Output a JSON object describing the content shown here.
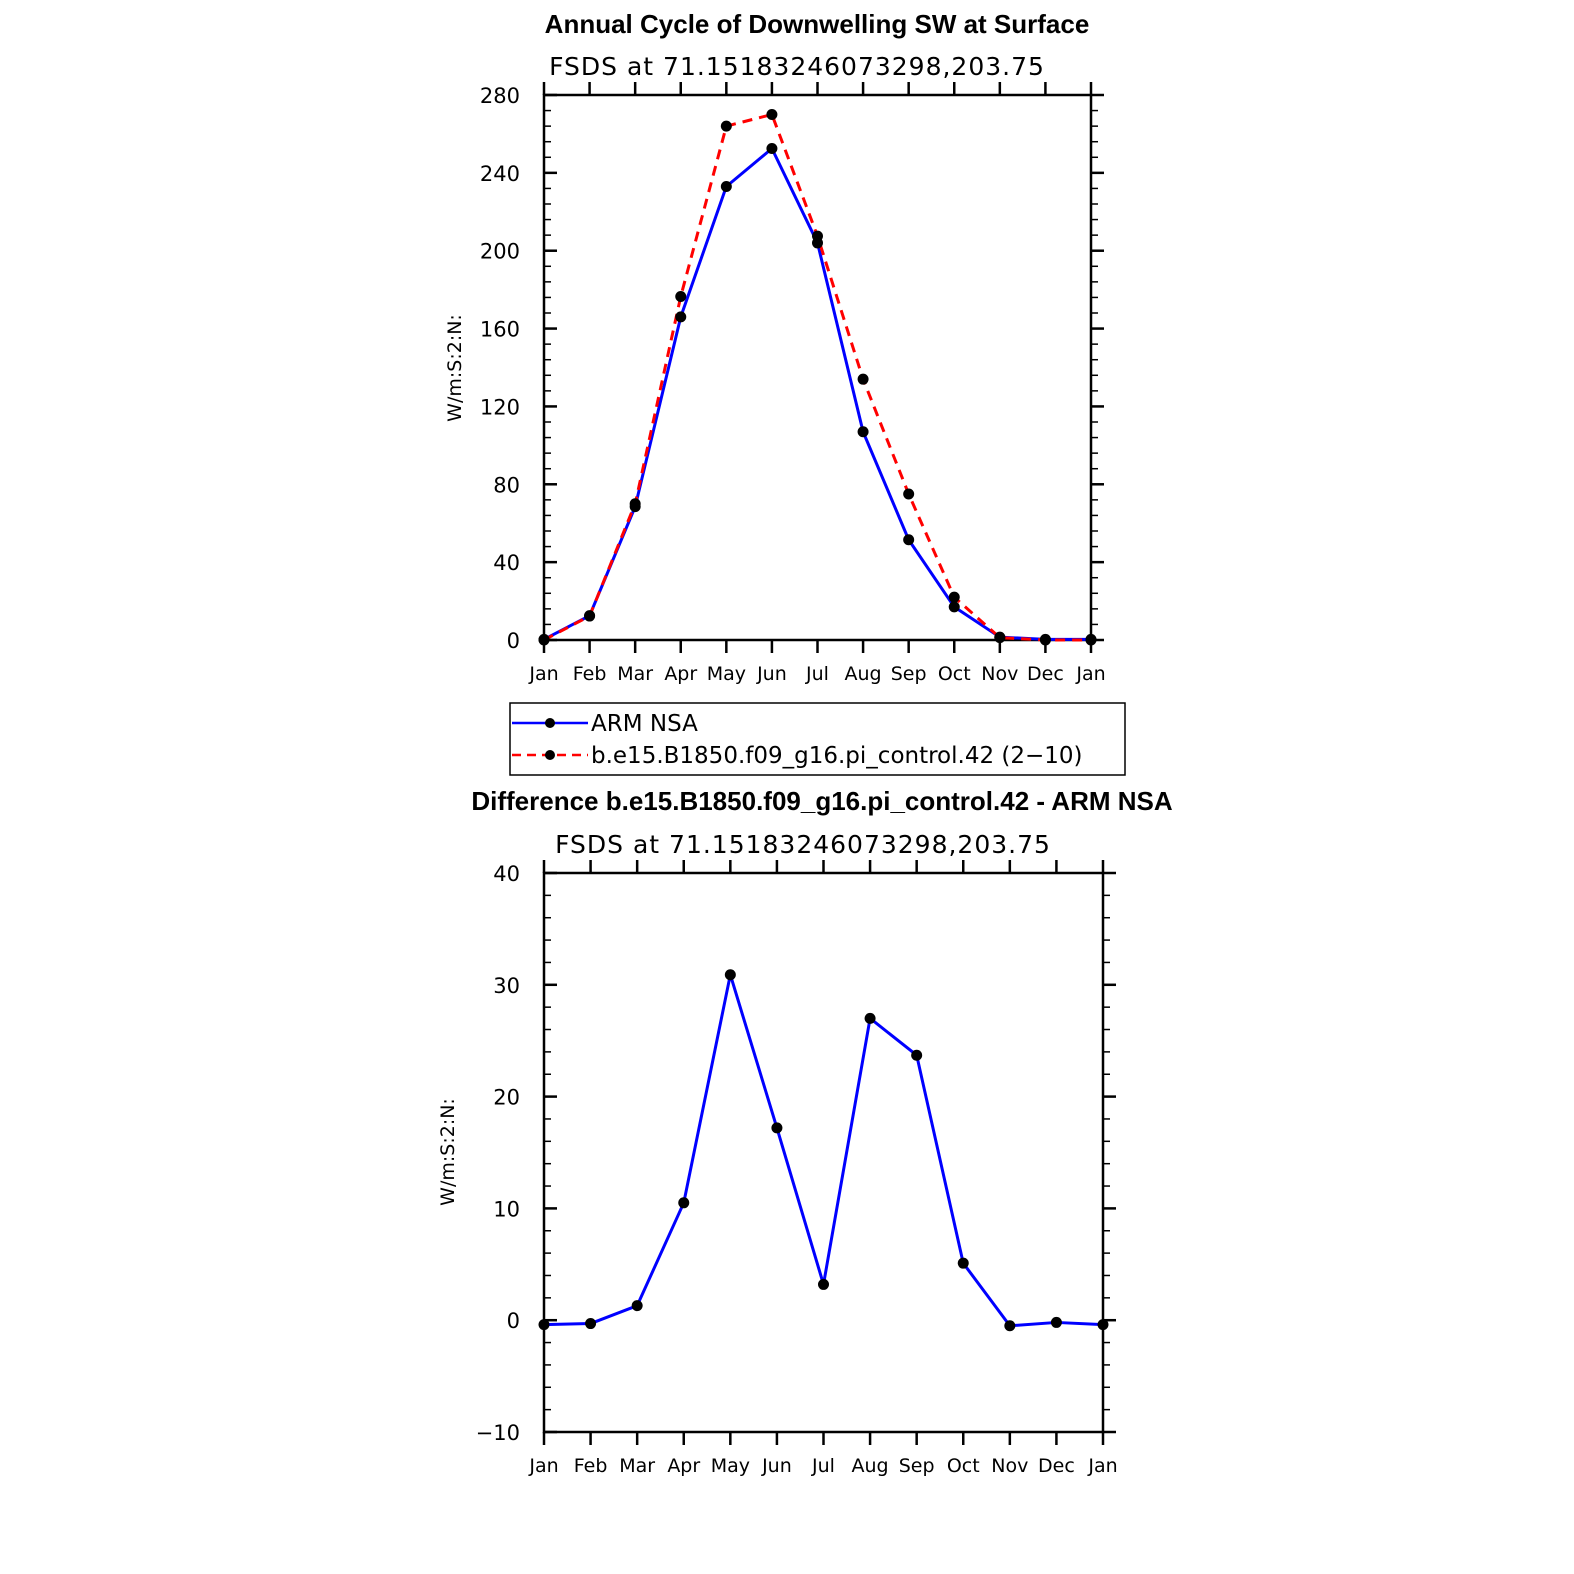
{
  "chart_data": [
    {
      "type": "line",
      "title": "Annual Cycle of Downwelling SW at Surface",
      "subtitle": "FSDS  at  71.15183246073298,203.75",
      "ylabel": "W/m:S:2:N:",
      "xlabel": "",
      "x": [
        "Jan",
        "Feb",
        "Mar",
        "Apr",
        "May",
        "Jun",
        "Jul",
        "Aug",
        "Sep",
        "Oct",
        "Nov",
        "Dec",
        "Jan"
      ],
      "ylim": [
        0,
        280
      ],
      "yticks": [
        0,
        40,
        80,
        120,
        160,
        200,
        240,
        280
      ],
      "grid": false,
      "legend_position": "below",
      "series": [
        {
          "name": "ARM NSA",
          "color": "#0000ff",
          "dash": "solid",
          "values": [
            0.3,
            12.5,
            68.5,
            166,
            233,
            252.5,
            204,
            107,
            51.5,
            17,
            1.5,
            0.3,
            0.3
          ]
        },
        {
          "name": "b.e15.B1850.f09_g16.pi_control.42 (2−10)",
          "color": "#ff0000",
          "dash": "dashed",
          "values": [
            0,
            12.3,
            70,
            176.5,
            264,
            270,
            207.5,
            134,
            75,
            22,
            1.2,
            0,
            0
          ]
        }
      ]
    },
    {
      "type": "line",
      "title": "Difference b.e15.B1850.f09_g16.pi_control.42 - ARM NSA",
      "subtitle": "FSDS  at  71.15183246073298,203.75",
      "ylabel": "W/m:S:2:N:",
      "xlabel": "",
      "x": [
        "Jan",
        "Feb",
        "Mar",
        "Apr",
        "May",
        "Jun",
        "Jul",
        "Aug",
        "Sep",
        "Oct",
        "Nov",
        "Dec",
        "Jan"
      ],
      "ylim": [
        -10,
        40
      ],
      "yticks": [
        -10,
        0,
        10,
        20,
        30,
        40
      ],
      "ytick_labels": [
        "−10",
        "0",
        "10",
        "20",
        "30",
        "40"
      ],
      "grid": false,
      "series": [
        {
          "color": "#0000ff",
          "dash": "solid",
          "values": [
            -0.4,
            -0.3,
            1.3,
            10.5,
            30.9,
            17.2,
            3.2,
            27,
            23.7,
            5.1,
            -0.5,
            -0.2,
            -0.4
          ]
        }
      ]
    }
  ]
}
